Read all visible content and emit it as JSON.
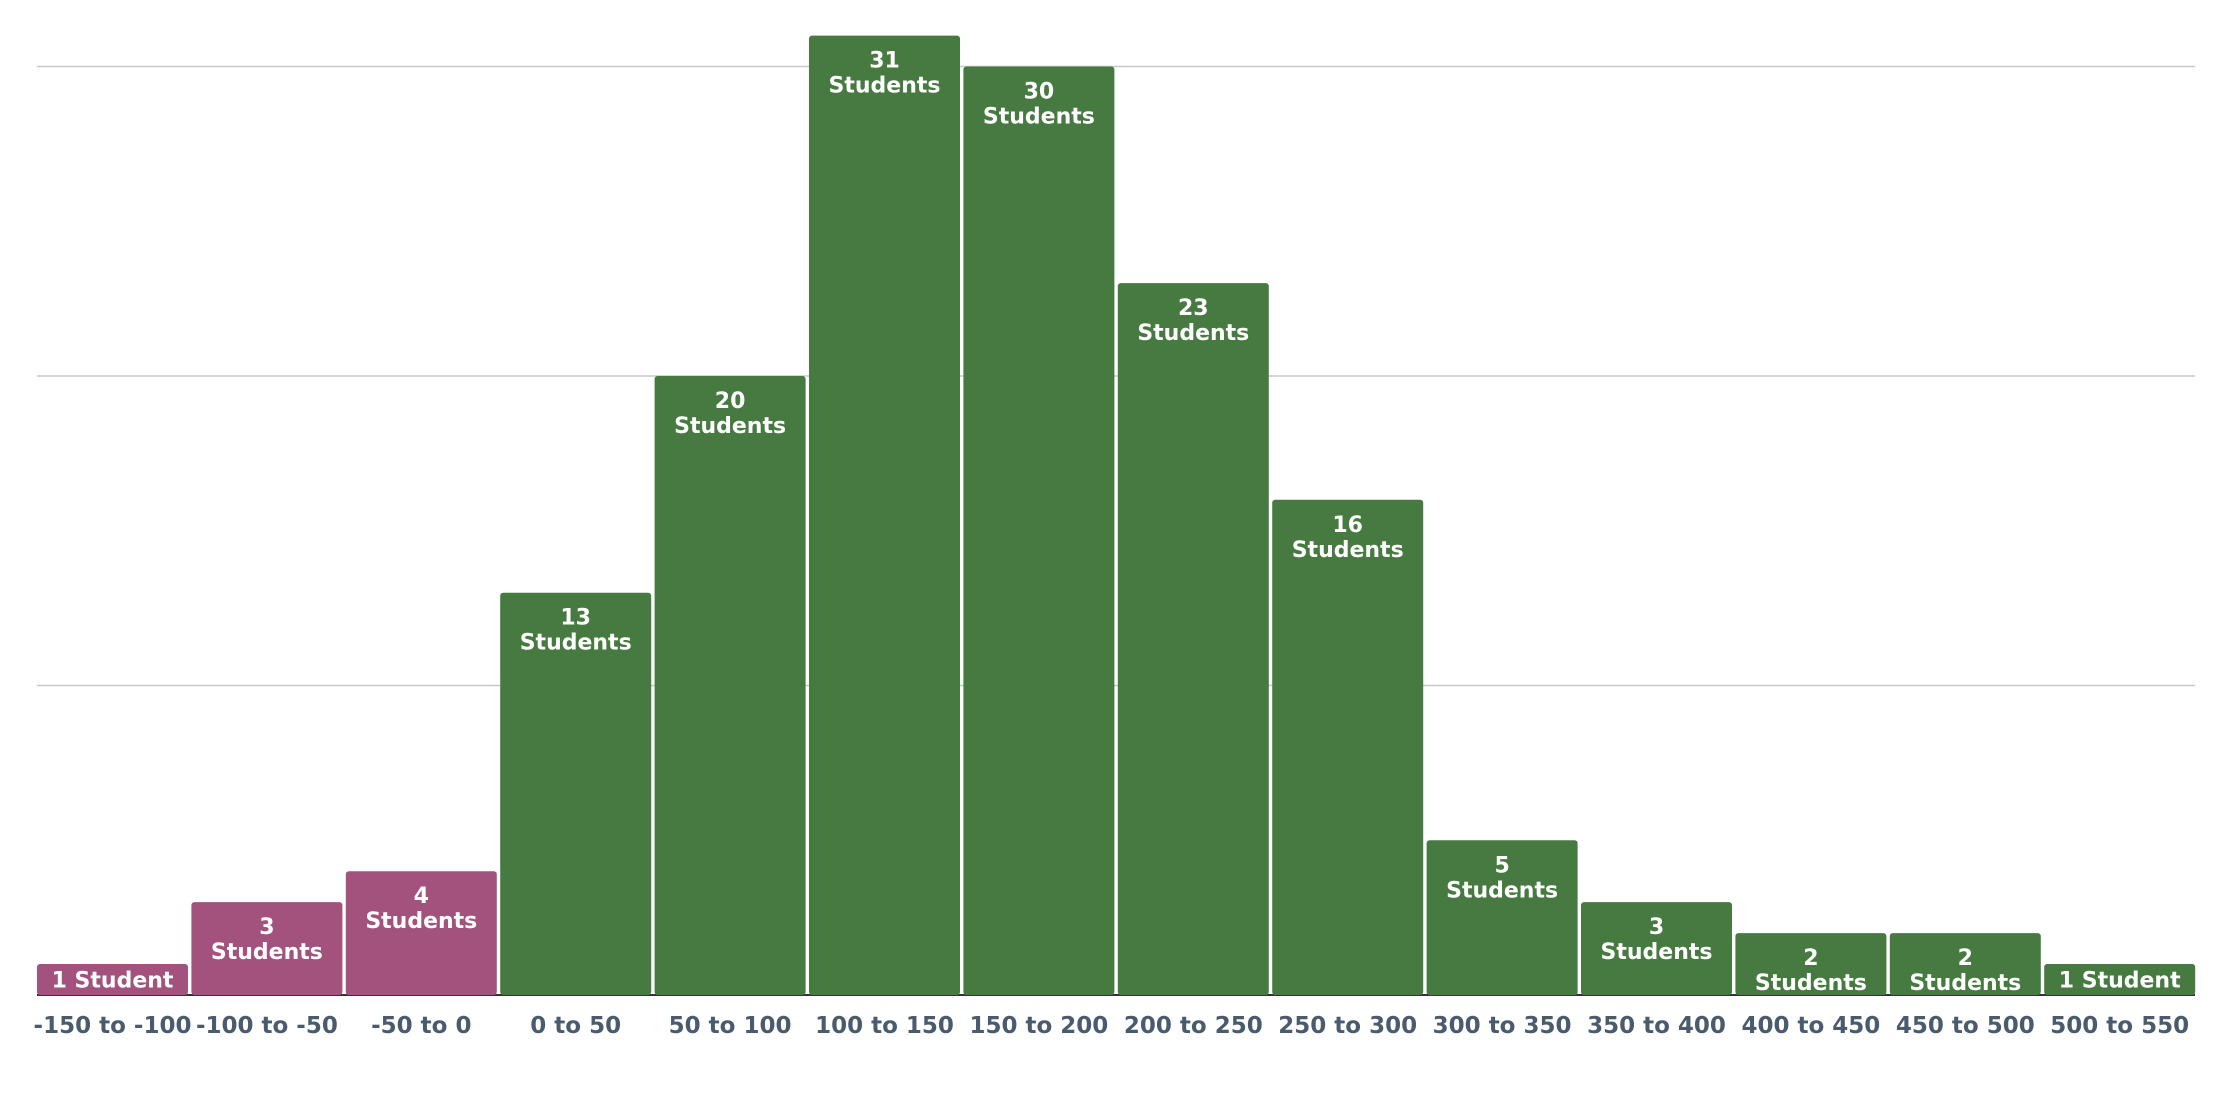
{
  "chart_data": {
    "type": "bar",
    "title": "",
    "xlabel": "",
    "ylabel": "",
    "ylim": [
      0,
      30
    ],
    "grid": true,
    "legend": "none",
    "categories": [
      "-150 to -100",
      "-100 to -50",
      "-50 to 0",
      "0 to 50",
      "50 to 100",
      "100 to 150",
      "150 to 200",
      "200 to 250",
      "250 to 300",
      "300 to 350",
      "350 to 400",
      "400 to 450",
      "450 to 500",
      "500 to 550"
    ],
    "values": [
      1,
      3,
      4,
      13,
      20,
      31,
      30,
      23,
      16,
      5,
      3,
      2,
      2,
      1
    ],
    "labels": [
      [
        "1 Student"
      ],
      [
        "3",
        "Students"
      ],
      [
        "4",
        "Students"
      ],
      [
        "13",
        "Students"
      ],
      [
        "20",
        "Students"
      ],
      [
        "31",
        "Students"
      ],
      [
        "30",
        "Students"
      ],
      [
        "23",
        "Students"
      ],
      [
        "16",
        "Students"
      ],
      [
        "5",
        "Students"
      ],
      [
        "3",
        "Students"
      ],
      [
        "2",
        "Students"
      ],
      [
        "2",
        "Students"
      ],
      [
        "1 Student"
      ]
    ],
    "colors": {
      "negative": "#a3527e",
      "positive": "#477a40"
    }
  }
}
